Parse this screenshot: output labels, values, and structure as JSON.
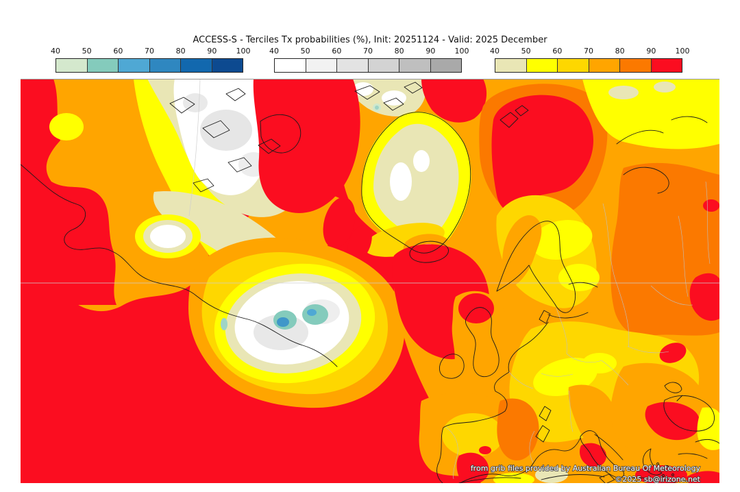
{
  "title": "ACCESS-S - Terciles Tx probabilities (%), Init: 20251124 - Valid: 2025 December",
  "legend": {
    "units": "%",
    "bars": [
      {
        "id": "below",
        "ticks": [
          "40",
          "50",
          "60",
          "70",
          "80",
          "90",
          "100"
        ],
        "colors": [
          "#d4e8cd",
          "#84cbbc",
          "#4fa8d4",
          "#2f87c0",
          "#1268ae",
          "#0d4a90"
        ]
      },
      {
        "id": "normal",
        "ticks": [
          "40",
          "50",
          "60",
          "70",
          "80",
          "90",
          "100"
        ],
        "colors": [
          "#ffffff",
          "#f2f2f2",
          "#e3e3e3",
          "#d3d3d3",
          "#bfbfbf",
          "#a9a9a9"
        ]
      },
      {
        "id": "above",
        "ticks": [
          "40",
          "50",
          "60",
          "70",
          "80",
          "90",
          "100"
        ],
        "colors": [
          "#e9e6b5",
          "#ffff00",
          "#fed700",
          "#ffa500",
          "#fb7900",
          "#fb0d20"
        ]
      }
    ]
  },
  "map": {
    "attribution_source": "from grib files provided by Australian Bureau Of Meteorology",
    "attribution_copyright": "©2025 sb@irizone.net"
  },
  "palette": {
    "red": "#fb0d20",
    "dark_orange": "#fb7900",
    "orange": "#ffa500",
    "gold": "#fed700",
    "yellow": "#ffff00",
    "khaki": "#e9e6b5",
    "white": "#ffffff",
    "light_gray": "#e8e8e8",
    "teal": "#84cbbc",
    "blue": "#3f97c9"
  }
}
